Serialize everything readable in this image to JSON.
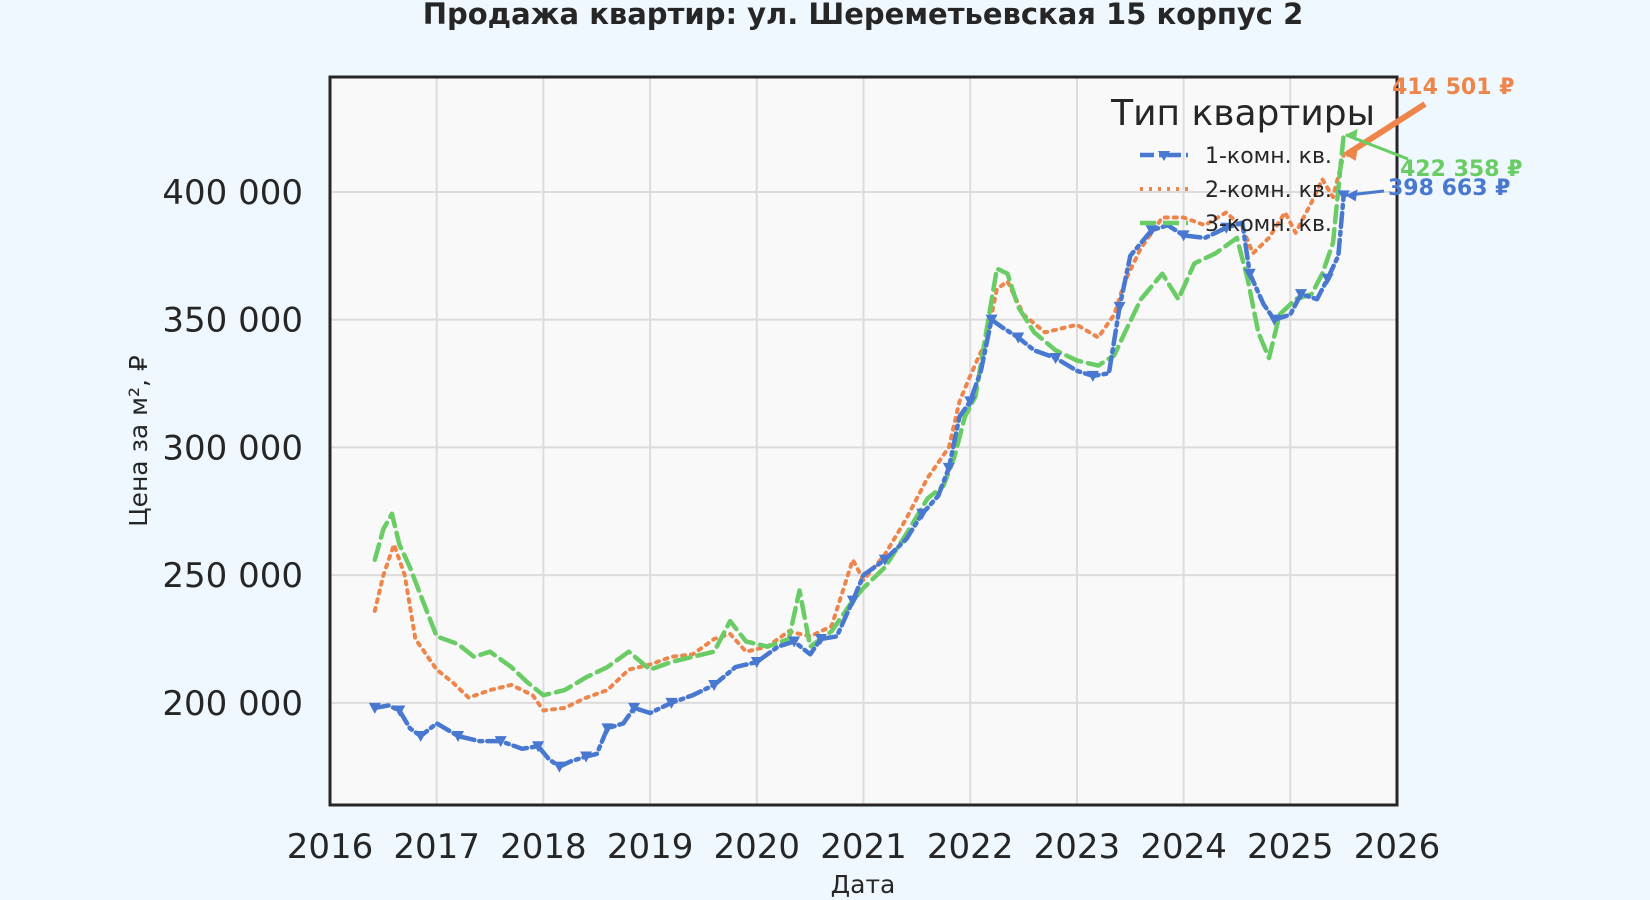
{
  "chart_data": {
    "type": "line",
    "title": "Продажа квартир: ул. Шереметьевская 15 корпус 2",
    "xlabel": "Дата",
    "ylabel": "Цена за м², ₽",
    "xlim": [
      2016.0,
      2026.0
    ],
    "ylim": [
      160000,
      445000
    ],
    "x_ticks": [
      "2016",
      "2017",
      "2018",
      "2019",
      "2020",
      "2021",
      "2022",
      "2023",
      "2024",
      "2025",
      "2026"
    ],
    "y_ticks": [
      200000,
      250000,
      300000,
      350000,
      400000
    ],
    "y_tick_labels": [
      "200 000",
      "250 000",
      "300 000",
      "350 000",
      "400 000"
    ],
    "grid": true,
    "legend": {
      "title": "Тип квартиры",
      "position": "top-right"
    },
    "series": [
      {
        "name": "1-комн. кв.",
        "color": "#4878d0",
        "style": "dashdot-triangle-markers",
        "points": [
          [
            2016.42,
            198000
          ],
          [
            2016.55,
            199000
          ],
          [
            2016.65,
            197000
          ],
          [
            2016.75,
            190000
          ],
          [
            2016.85,
            187000
          ],
          [
            2017.0,
            192000
          ],
          [
            2017.2,
            187000
          ],
          [
            2017.4,
            185000
          ],
          [
            2017.6,
            185000
          ],
          [
            2017.8,
            182000
          ],
          [
            2017.95,
            183000
          ],
          [
            2018.05,
            178000
          ],
          [
            2018.15,
            175000
          ],
          [
            2018.25,
            177000
          ],
          [
            2018.4,
            179000
          ],
          [
            2018.5,
            180000
          ],
          [
            2018.6,
            190000
          ],
          [
            2018.75,
            192000
          ],
          [
            2018.85,
            198000
          ],
          [
            2019.0,
            196000
          ],
          [
            2019.2,
            200000
          ],
          [
            2019.4,
            203000
          ],
          [
            2019.6,
            207000
          ],
          [
            2019.8,
            214000
          ],
          [
            2020.0,
            216000
          ],
          [
            2020.2,
            222000
          ],
          [
            2020.35,
            224000
          ],
          [
            2020.5,
            219000
          ],
          [
            2020.6,
            225000
          ],
          [
            2020.75,
            226000
          ],
          [
            2020.9,
            240000
          ],
          [
            2021.0,
            250000
          ],
          [
            2021.2,
            256000
          ],
          [
            2021.4,
            264000
          ],
          [
            2021.55,
            274000
          ],
          [
            2021.7,
            281000
          ],
          [
            2021.8,
            292000
          ],
          [
            2021.9,
            312000
          ],
          [
            2022.0,
            318000
          ],
          [
            2022.1,
            330000
          ],
          [
            2022.2,
            350000
          ],
          [
            2022.3,
            347000
          ],
          [
            2022.45,
            343000
          ],
          [
            2022.6,
            338000
          ],
          [
            2022.8,
            335000
          ],
          [
            2023.0,
            330000
          ],
          [
            2023.15,
            328000
          ],
          [
            2023.3,
            329000
          ],
          [
            2023.4,
            355000
          ],
          [
            2023.5,
            375000
          ],
          [
            2023.7,
            385000
          ],
          [
            2023.85,
            387000
          ],
          [
            2024.0,
            383000
          ],
          [
            2024.2,
            382000
          ],
          [
            2024.4,
            386000
          ],
          [
            2024.55,
            388000
          ],
          [
            2024.62,
            368000
          ],
          [
            2024.75,
            356000
          ],
          [
            2024.85,
            350000
          ],
          [
            2025.0,
            352000
          ],
          [
            2025.1,
            360000
          ],
          [
            2025.25,
            358000
          ],
          [
            2025.35,
            366000
          ],
          [
            2025.45,
            375000
          ],
          [
            2025.5,
            398663
          ]
        ]
      },
      {
        "name": "2-комн. кв.",
        "color": "#ee854a",
        "style": "dotted",
        "points": [
          [
            2016.42,
            236000
          ],
          [
            2016.5,
            250000
          ],
          [
            2016.6,
            262000
          ],
          [
            2016.7,
            250000
          ],
          [
            2016.8,
            225000
          ],
          [
            2017.0,
            213000
          ],
          [
            2017.15,
            208000
          ],
          [
            2017.3,
            202000
          ],
          [
            2017.5,
            205000
          ],
          [
            2017.7,
            207000
          ],
          [
            2017.9,
            203000
          ],
          [
            2018.0,
            197000
          ],
          [
            2018.2,
            198000
          ],
          [
            2018.4,
            202000
          ],
          [
            2018.6,
            205000
          ],
          [
            2018.8,
            213000
          ],
          [
            2019.0,
            215000
          ],
          [
            2019.2,
            218000
          ],
          [
            2019.4,
            219000
          ],
          [
            2019.6,
            225000
          ],
          [
            2019.75,
            227000
          ],
          [
            2019.9,
            220000
          ],
          [
            2020.1,
            222000
          ],
          [
            2020.3,
            228000
          ],
          [
            2020.5,
            226000
          ],
          [
            2020.7,
            230000
          ],
          [
            2020.9,
            256000
          ],
          [
            2021.0,
            248000
          ],
          [
            2021.2,
            258000
          ],
          [
            2021.4,
            272000
          ],
          [
            2021.6,
            288000
          ],
          [
            2021.8,
            300000
          ],
          [
            2021.9,
            318000
          ],
          [
            2022.0,
            328000
          ],
          [
            2022.15,
            342000
          ],
          [
            2022.25,
            362000
          ],
          [
            2022.35,
            365000
          ],
          [
            2022.5,
            352000
          ],
          [
            2022.7,
            345000
          ],
          [
            2022.9,
            347000
          ],
          [
            2023.0,
            348000
          ],
          [
            2023.2,
            343000
          ],
          [
            2023.35,
            352000
          ],
          [
            2023.45,
            365000
          ],
          [
            2023.6,
            378000
          ],
          [
            2023.8,
            390000
          ],
          [
            2024.0,
            390000
          ],
          [
            2024.2,
            387000
          ],
          [
            2024.4,
            392000
          ],
          [
            2024.55,
            386000
          ],
          [
            2024.65,
            376000
          ],
          [
            2024.8,
            382000
          ],
          [
            2024.95,
            392000
          ],
          [
            2025.05,
            384000
          ],
          [
            2025.2,
            396000
          ],
          [
            2025.3,
            405000
          ],
          [
            2025.4,
            398000
          ],
          [
            2025.5,
            414501
          ]
        ]
      },
      {
        "name": "3-комн. кв.",
        "color": "#6acc64",
        "style": "dashed",
        "points": [
          [
            2016.42,
            256000
          ],
          [
            2016.5,
            268000
          ],
          [
            2016.58,
            274000
          ],
          [
            2016.65,
            262000
          ],
          [
            2016.75,
            253000
          ],
          [
            2016.85,
            242000
          ],
          [
            2017.0,
            226000
          ],
          [
            2017.2,
            223000
          ],
          [
            2017.35,
            218000
          ],
          [
            2017.5,
            220000
          ],
          [
            2017.7,
            214000
          ],
          [
            2017.85,
            208000
          ],
          [
            2018.0,
            203000
          ],
          [
            2018.2,
            205000
          ],
          [
            2018.4,
            210000
          ],
          [
            2018.6,
            214000
          ],
          [
            2018.8,
            220000
          ],
          [
            2019.0,
            213000
          ],
          [
            2019.2,
            216000
          ],
          [
            2019.4,
            218000
          ],
          [
            2019.6,
            220000
          ],
          [
            2019.75,
            232000
          ],
          [
            2019.9,
            224000
          ],
          [
            2020.1,
            222000
          ],
          [
            2020.3,
            225000
          ],
          [
            2020.4,
            244000
          ],
          [
            2020.5,
            222000
          ],
          [
            2020.7,
            228000
          ],
          [
            2020.9,
            240000
          ],
          [
            2021.0,
            245000
          ],
          [
            2021.2,
            253000
          ],
          [
            2021.4,
            266000
          ],
          [
            2021.6,
            280000
          ],
          [
            2021.75,
            285000
          ],
          [
            2021.85,
            296000
          ],
          [
            2021.95,
            312000
          ],
          [
            2022.05,
            320000
          ],
          [
            2022.15,
            345000
          ],
          [
            2022.25,
            370000
          ],
          [
            2022.35,
            368000
          ],
          [
            2022.45,
            355000
          ],
          [
            2022.6,
            345000
          ],
          [
            2022.8,
            338000
          ],
          [
            2023.0,
            334000
          ],
          [
            2023.2,
            332000
          ],
          [
            2023.35,
            336000
          ],
          [
            2023.45,
            345000
          ],
          [
            2023.6,
            358000
          ],
          [
            2023.8,
            368000
          ],
          [
            2023.95,
            358000
          ],
          [
            2024.1,
            372000
          ],
          [
            2024.3,
            376000
          ],
          [
            2024.5,
            382000
          ],
          [
            2024.6,
            366000
          ],
          [
            2024.7,
            345000
          ],
          [
            2024.8,
            335000
          ],
          [
            2024.9,
            352000
          ],
          [
            2025.05,
            358000
          ],
          [
            2025.2,
            360000
          ],
          [
            2025.3,
            368000
          ],
          [
            2025.4,
            380000
          ],
          [
            2025.5,
            422358
          ]
        ]
      }
    ],
    "annotations": [
      {
        "text": "414 501 ₽",
        "color": "#ee854a",
        "series": "2-комн. кв.",
        "value": 414501
      },
      {
        "text": "422 358 ₽",
        "color": "#6acc64",
        "series": "3-комн. кв.",
        "value": 422358
      },
      {
        "text": "398 663 ₽",
        "color": "#4878d0",
        "series": "1-комн. кв.",
        "value": 398663
      }
    ]
  }
}
